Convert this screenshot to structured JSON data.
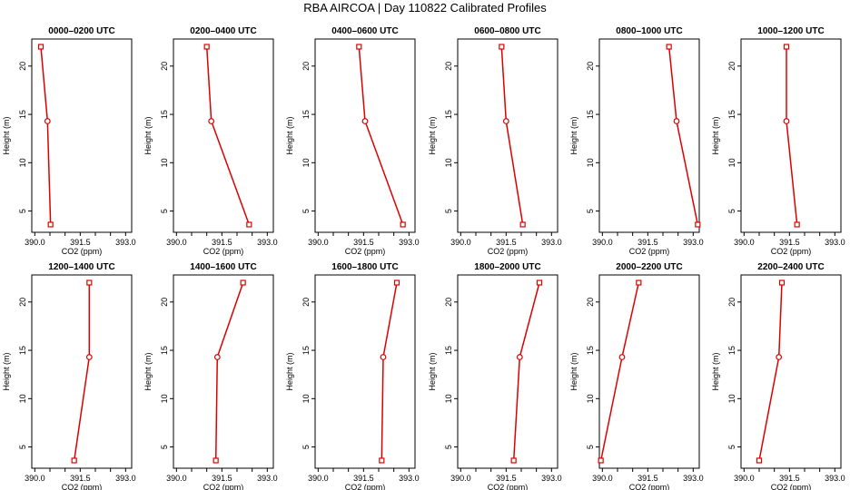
{
  "figure_title": "RBA AIRCOA |  Day 110822  Calibrated Profiles",
  "colors": {
    "series": "#dd0000",
    "axis": "#000000"
  },
  "chart_data": [
    {
      "type": "line",
      "title": "0000–0200 UTC",
      "xlabel": "CO2 (ppm)",
      "ylabel": "Height (m)",
      "x_ticks": [
        "390.0",
        "391.5",
        "393.0"
      ],
      "y_ticks": [
        "5",
        "10",
        "15",
        "20"
      ],
      "xlim": [
        389.9,
        393.2
      ],
      "ylim": [
        2.8,
        22.8
      ],
      "x": [
        390.2,
        390.42,
        390.52
      ],
      "y": [
        22,
        14.3,
        3.6
      ]
    },
    {
      "type": "line",
      "title": "0200–0400 UTC",
      "xlabel": "CO2 (ppm)",
      "ylabel": "Height (m)",
      "x_ticks": [
        "390.0",
        "391.5",
        "393.0"
      ],
      "y_ticks": [
        "5",
        "10",
        "15",
        "20"
      ],
      "xlim": [
        389.9,
        393.2
      ],
      "ylim": [
        2.8,
        22.8
      ],
      "x": [
        391.0,
        391.15,
        392.4
      ],
      "y": [
        22,
        14.3,
        3.6
      ]
    },
    {
      "type": "line",
      "title": "0400–0600 UTC",
      "xlabel": "CO2 (ppm)",
      "ylabel": "Height (m)",
      "x_ticks": [
        "390.0",
        "391.5",
        "393.0"
      ],
      "y_ticks": [
        "5",
        "10",
        "15",
        "20"
      ],
      "xlim": [
        389.9,
        393.2
      ],
      "ylim": [
        2.8,
        22.8
      ],
      "x": [
        391.35,
        391.55,
        392.8
      ],
      "y": [
        22,
        14.3,
        3.6
      ]
    },
    {
      "type": "line",
      "title": "0600–0800 UTC",
      "xlabel": "CO2 (ppm)",
      "ylabel": "Height (m)",
      "x_ticks": [
        "390.0",
        "391.5",
        "393.0"
      ],
      "y_ticks": [
        "5",
        "10",
        "15",
        "20"
      ],
      "xlim": [
        389.9,
        393.2
      ],
      "ylim": [
        2.8,
        22.8
      ],
      "x": [
        391.35,
        391.5,
        392.05
      ],
      "y": [
        22,
        14.3,
        3.6
      ]
    },
    {
      "type": "line",
      "title": "0800–1000 UTC",
      "xlabel": "CO2 (ppm)",
      "ylabel": "Height (m)",
      "x_ticks": [
        "390.0",
        "391.5",
        "393.0"
      ],
      "y_ticks": [
        "5",
        "10",
        "15",
        "20"
      ],
      "xlim": [
        389.9,
        393.2
      ],
      "ylim": [
        2.8,
        22.8
      ],
      "x": [
        392.2,
        392.45,
        393.15
      ],
      "y": [
        22,
        14.3,
        3.6
      ]
    },
    {
      "type": "line",
      "title": "1000–1200 UTC",
      "xlabel": "CO2 (ppm)",
      "ylabel": "Height (m)",
      "x_ticks": [
        "390.0",
        "391.5",
        "393.0"
      ],
      "y_ticks": [
        "5",
        "10",
        "15",
        "20"
      ],
      "xlim": [
        389.9,
        393.2
      ],
      "ylim": [
        2.8,
        22.8
      ],
      "x": [
        391.4,
        391.4,
        391.75
      ],
      "y": [
        22,
        14.3,
        3.6
      ]
    },
    {
      "type": "line",
      "title": "1200–1400 UTC",
      "xlabel": "CO2 (ppm)",
      "ylabel": "Height (m)",
      "x_ticks": [
        "390.0",
        "391.5",
        "393.0"
      ],
      "y_ticks": [
        "5",
        "10",
        "15",
        "20"
      ],
      "xlim": [
        389.9,
        393.2
      ],
      "ylim": [
        2.8,
        22.8
      ],
      "x": [
        391.8,
        391.8,
        391.3
      ],
      "y": [
        22,
        14.3,
        3.6
      ]
    },
    {
      "type": "line",
      "title": "1400–1600 UTC",
      "xlabel": "CO2 (ppm)",
      "ylabel": "Height (m)",
      "x_ticks": [
        "390.0",
        "391.5",
        "393.0"
      ],
      "y_ticks": [
        "5",
        "10",
        "15",
        "20"
      ],
      "xlim": [
        389.9,
        393.2
      ],
      "ylim": [
        2.8,
        22.8
      ],
      "x": [
        392.2,
        391.35,
        391.3
      ],
      "y": [
        22,
        14.3,
        3.6
      ]
    },
    {
      "type": "line",
      "title": "1600–1800 UTC",
      "xlabel": "CO2 (ppm)",
      "ylabel": "Height (m)",
      "x_ticks": [
        "390.0",
        "391.5",
        "393.0"
      ],
      "y_ticks": [
        "5",
        "10",
        "15",
        "20"
      ],
      "xlim": [
        389.9,
        393.2
      ],
      "ylim": [
        2.8,
        22.8
      ],
      "x": [
        392.6,
        392.15,
        392.1
      ],
      "y": [
        22,
        14.3,
        3.6
      ]
    },
    {
      "type": "line",
      "title": "1800–2000 UTC",
      "xlabel": "CO2 (ppm)",
      "ylabel": "Height (m)",
      "x_ticks": [
        "390.0",
        "391.5",
        "393.0"
      ],
      "y_ticks": [
        "5",
        "10",
        "15",
        "20"
      ],
      "xlim": [
        389.9,
        393.2
      ],
      "ylim": [
        2.8,
        22.8
      ],
      "x": [
        392.6,
        391.95,
        391.75
      ],
      "y": [
        22,
        14.3,
        3.6
      ]
    },
    {
      "type": "line",
      "title": "2000–2200 UTC",
      "xlabel": "CO2 (ppm)",
      "ylabel": "Height (m)",
      "x_ticks": [
        "390.0",
        "391.5",
        "393.0"
      ],
      "y_ticks": [
        "5",
        "10",
        "15",
        "20"
      ],
      "xlim": [
        389.9,
        393.2
      ],
      "ylim": [
        2.8,
        22.8
      ],
      "x": [
        391.2,
        390.65,
        389.95
      ],
      "y": [
        22,
        14.3,
        3.6
      ]
    },
    {
      "type": "line",
      "title": "2200–2400 UTC",
      "xlabel": "CO2 (ppm)",
      "ylabel": "Height (m)",
      "x_ticks": [
        "390.0",
        "391.5",
        "393.0"
      ],
      "y_ticks": [
        "5",
        "10",
        "15",
        "20"
      ],
      "xlim": [
        389.9,
        393.2
      ],
      "ylim": [
        2.8,
        22.8
      ],
      "x": [
        391.25,
        391.15,
        390.5
      ],
      "y": [
        22,
        14.3,
        3.6
      ]
    }
  ]
}
